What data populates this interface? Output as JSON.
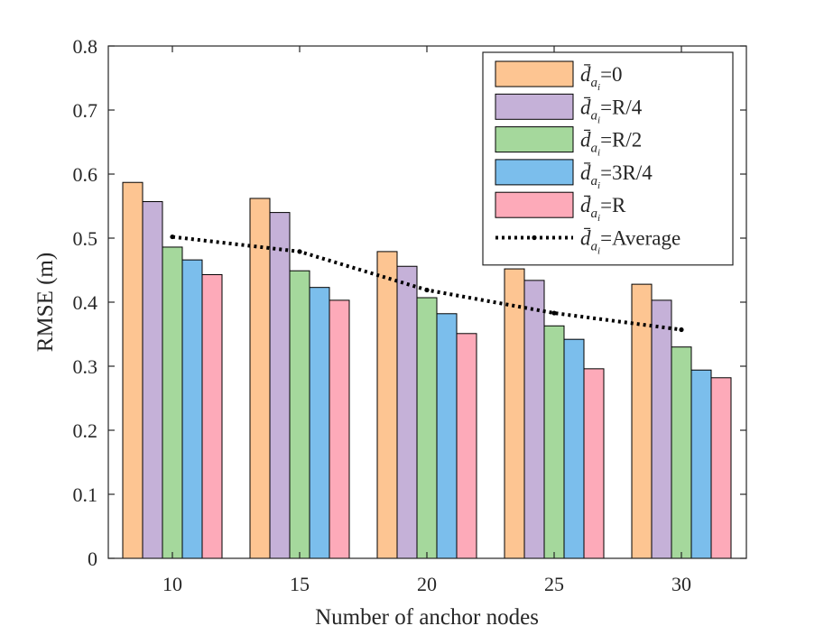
{
  "chart_data": {
    "type": "bar",
    "categories": [
      "10",
      "15",
      "20",
      "25",
      "30"
    ],
    "series": [
      {
        "name": "=0",
        "values": [
          0.587,
          0.562,
          0.479,
          0.452,
          0.428
        ],
        "color": "#FDC592"
      },
      {
        "name": "=R/4",
        "values": [
          0.557,
          0.54,
          0.456,
          0.434,
          0.403
        ],
        "color": "#C5B1D8"
      },
      {
        "name": "=R/2",
        "values": [
          0.486,
          0.449,
          0.407,
          0.363,
          0.33
        ],
        "color": "#A5D89C"
      },
      {
        "name": "=3R/4",
        "values": [
          0.466,
          0.423,
          0.382,
          0.342,
          0.294
        ],
        "color": "#7BBEEC"
      },
      {
        "name": "=R",
        "values": [
          0.443,
          0.403,
          0.351,
          0.296,
          0.282
        ],
        "color": "#FDAAB9"
      }
    ],
    "line_series": {
      "name": "=Average",
      "values": [
        0.502,
        0.479,
        0.419,
        0.383,
        0.357
      ],
      "color": "#000000",
      "style": "dotted"
    },
    "legend_symbol": "d̄",
    "legend_subscript": "a",
    "legend_subsubscript": "i",
    "xlabel": "Number of anchor nodes",
    "ylabel": "RMSE (m)",
    "ylim": [
      0,
      0.8
    ],
    "yticks": [
      "0",
      "0.1",
      "0.2",
      "0.3",
      "0.4",
      "0.5",
      "0.6",
      "0.7",
      "0.8"
    ],
    "grid": false,
    "legend_position": "top-right"
  }
}
